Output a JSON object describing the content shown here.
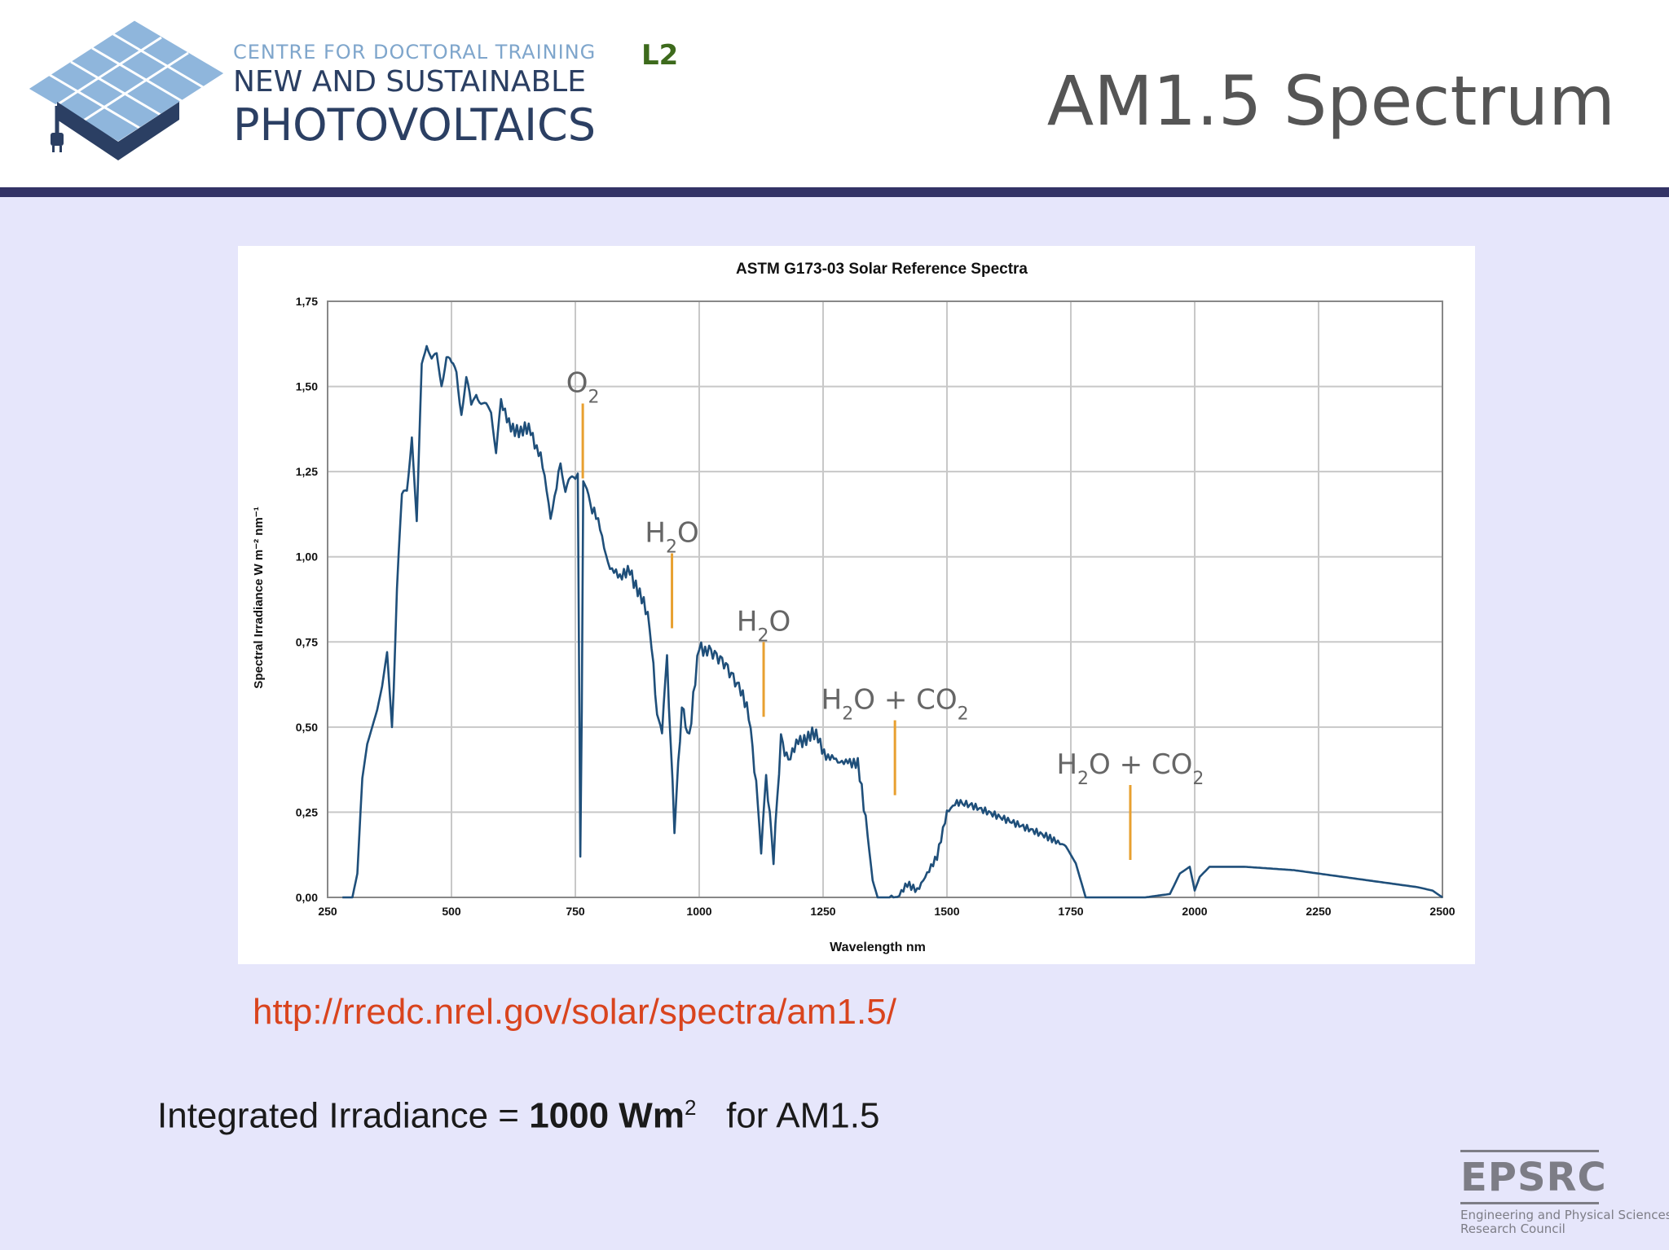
{
  "header": {
    "logo_line1": "CENTRE FOR DOCTORAL TRAINING",
    "logo_line2": "NEW AND SUSTAINABLE",
    "logo_line3": "PHOTOVOLTAICS",
    "slide_code": "L2",
    "title": "AM1.5 Spectrum"
  },
  "colors": {
    "header_bar": "#333366",
    "background": "#e6e6fb",
    "curve": "#1f4f7a",
    "marker": "#e8a030",
    "url": "#d9441e"
  },
  "chart_data": {
    "type": "line",
    "title": "ASTM G173-03 Solar Reference Spectra",
    "xlabel": "Wavelength nm",
    "ylabel": "Spectral Irradiance W m⁻² nm⁻¹",
    "xlim": [
      250,
      2500
    ],
    "ylim": [
      0,
      1.75
    ],
    "x_ticks": [
      "250",
      "500",
      "750",
      "1000",
      "1250",
      "1500",
      "1750",
      "2000",
      "2250",
      "2500"
    ],
    "y_ticks": [
      "0,00",
      "0,25",
      "0,50",
      "0,75",
      "1,00",
      "1,25",
      "1,50",
      "1,75"
    ],
    "grid": true,
    "series": [
      {
        "x": [
          280,
          300,
          310,
          320,
          330,
          340,
          350,
          360,
          370,
          380,
          390,
          400,
          410,
          420,
          430,
          440,
          450,
          460,
          470,
          480,
          490,
          500,
          510,
          520,
          530,
          540,
          550,
          560,
          570,
          580,
          590,
          600,
          620,
          640,
          660,
          680,
          700,
          720,
          730,
          740,
          750,
          755,
          760,
          763,
          766,
          770,
          780,
          800,
          820,
          840,
          860,
          880,
          900,
          915,
          925,
          935,
          950,
          965,
          980,
          1000,
          1020,
          1050,
          1080,
          1100,
          1115,
          1125,
          1135,
          1150,
          1165,
          1180,
          1200,
          1220,
          1240,
          1260,
          1280,
          1300,
          1320,
          1340,
          1350,
          1360,
          1400,
          1420,
          1440,
          1460,
          1480,
          1500,
          1520,
          1550,
          1600,
          1650,
          1700,
          1740,
          1760,
          1780,
          1800,
          1850,
          1900,
          1950,
          1970,
          1990,
          2000,
          2010,
          2030,
          2060,
          2100,
          2150,
          2200,
          2250,
          2300,
          2350,
          2400,
          2450,
          2480,
          2500
        ],
        "y": [
          0.0,
          0.0,
          0.07,
          0.35,
          0.45,
          0.5,
          0.55,
          0.62,
          0.72,
          0.5,
          0.9,
          1.15,
          1.2,
          1.38,
          1.1,
          1.55,
          1.62,
          1.58,
          1.6,
          1.52,
          1.58,
          1.54,
          1.55,
          1.45,
          1.52,
          1.42,
          1.48,
          1.46,
          1.45,
          1.43,
          1.3,
          1.44,
          1.4,
          1.35,
          1.38,
          1.3,
          1.1,
          1.3,
          1.18,
          1.2,
          1.24,
          1.24,
          0.15,
          0.55,
          1.2,
          1.2,
          1.14,
          1.08,
          0.98,
          0.92,
          0.98,
          0.88,
          0.8,
          0.55,
          0.45,
          0.7,
          0.2,
          0.55,
          0.45,
          0.75,
          0.73,
          0.68,
          0.6,
          0.55,
          0.35,
          0.1,
          0.35,
          0.1,
          0.45,
          0.38,
          0.48,
          0.46,
          0.47,
          0.42,
          0.38,
          0.42,
          0.38,
          0.18,
          0.05,
          0.0,
          0.0,
          0.04,
          0.02,
          0.07,
          0.12,
          0.25,
          0.28,
          0.27,
          0.24,
          0.21,
          0.18,
          0.15,
          0.1,
          0.0,
          0.0,
          0.0,
          0.0,
          0.01,
          0.07,
          0.09,
          0.02,
          0.06,
          0.09,
          0.09,
          0.09,
          0.085,
          0.08,
          0.07,
          0.06,
          0.05,
          0.04,
          0.03,
          0.02,
          0.0
        ]
      }
    ],
    "annotations": [
      {
        "label": "O2",
        "x": 765,
        "y_low": 1.23,
        "y_high": 1.45
      },
      {
        "label": "H2O",
        "x": 945,
        "y_low": 0.79,
        "y_high": 1.01
      },
      {
        "label": "H2O",
        "x": 1130,
        "y_low": 0.53,
        "y_high": 0.75
      },
      {
        "label": "H2O + CO2",
        "x": 1395,
        "y_low": 0.3,
        "y_high": 0.52
      },
      {
        "label": "H2O + CO2",
        "x": 1870,
        "y_low": 0.11,
        "y_high": 0.33
      }
    ]
  },
  "source_url": "http://rredc.nrel.gov/solar/spectra/am1.5/",
  "irradiance": {
    "prefix": "Integrated Irradiance = ",
    "value": "1000 Wm",
    "superscript": "2",
    "suffix": "for AM1.5"
  },
  "funder_logo": {
    "name": "EPSRC",
    "subtitle_line1": "Engineering and Physical Sciences",
    "subtitle_line2": "Research Council"
  }
}
